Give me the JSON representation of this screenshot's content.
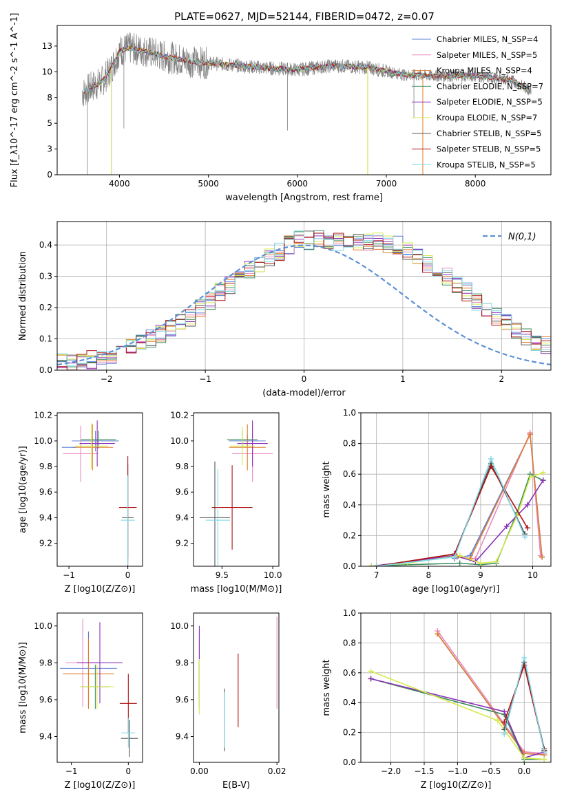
{
  "figure_title": "PLATE=0627, MJD=52144, FIBERID=0472, z=0.07",
  "colors": {
    "Chabrier MILES": "#5b7fd6",
    "Salpeter MILES": "#e88ac0",
    "Kroupa MILES": "#e07d2f",
    "Chabrier ELODIE": "#3d8c5c",
    "Salpeter ELODIE": "#8b2fb8",
    "Kroupa ELODIE": "#d6ea4a",
    "Chabrier STELIB": "#555555",
    "Salpeter STELIB": "#b01010",
    "Kroupa STELIB": "#7fd8e6",
    "data": "#808080",
    "normal": "#5b8fd6"
  },
  "chart_data": [
    {
      "id": "spectrum",
      "type": "line",
      "xlabel": "wavelength [Angstrom, rest frame]",
      "ylabel": "Flux [f_λ10^-17 erg cm^-2 s^-1 A^-1]",
      "xlim": [
        3300,
        8850
      ],
      "ylim": [
        0,
        14.5
      ],
      "xticks": [
        4000,
        5000,
        6000,
        7000,
        8000
      ],
      "yticks": [
        0.0,
        2.5,
        5.0,
        7.5,
        10.0,
        12.5
      ],
      "legend_position": "upper right",
      "legend": [
        "Chabrier MILES, N_SSP=4",
        "Salpeter MILES, N_SSP=5",
        "Kroupa MILES, N_SSP=4",
        "Chabrier ELODIE, N_SSP=7",
        "Salpeter ELODIE, N_SSP=5",
        "Kroupa ELODIE, N_SSP=7",
        "Chabrier STELIB, N_SSP=5",
        "Salpeter STELIB, N_SSP=5",
        "Kroupa STELIB, N_SSP=5"
      ],
      "model_continuum": {
        "x": [
          3600,
          3700,
          3800,
          3900,
          4000,
          4100,
          4300,
          4500,
          4800,
          5200,
          5600,
          6000,
          6400,
          6800,
          7200,
          7600,
          8000,
          8400,
          8600
        ],
        "y": [
          8.0,
          8.6,
          9.0,
          10.2,
          12.0,
          12.3,
          12.0,
          11.5,
          11.0,
          10.7,
          10.4,
          10.2,
          10.6,
          10.4,
          9.7,
          9.6,
          9.6,
          9.2,
          8.3
        ]
      },
      "data_range": [
        3580,
        8630
      ],
      "data_drops": [
        {
          "x": 3640,
          "y": 0.0
        },
        {
          "x": 3910,
          "y": 0.0
        },
        {
          "x": 4050,
          "y": 4.5
        },
        {
          "x": 5890,
          "y": 4.3
        },
        {
          "x": 6790,
          "y": 0.0
        },
        {
          "x": 7310,
          "y": 5.5
        }
      ],
      "model_drops": [
        {
          "x": 3910,
          "y": 0.0
        },
        {
          "x": 6790,
          "y": 0.0
        },
        {
          "x": 7410,
          "y": 0.0
        }
      ]
    },
    {
      "id": "residuals",
      "type": "histogram",
      "xlabel": "(data-model)/error",
      "ylabel": "Normed distribution",
      "xlim": [
        -2.5,
        2.5
      ],
      "ylim": [
        0,
        0.475
      ],
      "xticks": [
        -2,
        -1,
        0,
        1,
        2
      ],
      "yticks": [
        0.0,
        0.1,
        0.2,
        0.3,
        0.4
      ],
      "grid": true,
      "legend_position": "upper right",
      "normal_label": "N(0,1)",
      "bin_width": 0.1,
      "bin_start": -2.5,
      "base_values": [
        0.03,
        0.025,
        0.028,
        0.033,
        0.04,
        0.05,
        0.06,
        0.075,
        0.09,
        0.1,
        0.115,
        0.13,
        0.15,
        0.17,
        0.195,
        0.22,
        0.25,
        0.27,
        0.3,
        0.32,
        0.34,
        0.36,
        0.38,
        0.4,
        0.42,
        0.415,
        0.42,
        0.4,
        0.41,
        0.4,
        0.41,
        0.41,
        0.41,
        0.4,
        0.4,
        0.38,
        0.36,
        0.34,
        0.32,
        0.3,
        0.27,
        0.25,
        0.22,
        0.2,
        0.17,
        0.15,
        0.13,
        0.11,
        0.09,
        0.08,
        0.06,
        0.05,
        0.04,
        0.032,
        0.025
      ],
      "series_count": 9
    },
    {
      "id": "age_vs_Z",
      "type": "errorbar",
      "xlabel": "Z [log10(Z/Z⊙)]",
      "ylabel": "age  [log10(age/yr)]",
      "xlim": [
        -1.2,
        0.25
      ],
      "ylim": [
        9.02,
        10.22
      ],
      "xticks": [
        -1,
        0
      ],
      "yticks": [
        9.2,
        9.4,
        9.6,
        9.8,
        10.0,
        10.2
      ],
      "points": [
        {
          "name": "Chabrier MILES",
          "x": -0.55,
          "xerr": 0.4,
          "y": 10.0,
          "yerr": 0.08
        },
        {
          "name": "Salpeter MILES",
          "x": -0.8,
          "xerr": 0.3,
          "y": 9.9,
          "yerr": 0.22
        },
        {
          "name": "Kroupa MILES",
          "x": -0.6,
          "xerr": 0.35,
          "y": 9.95,
          "yerr": 0.18
        },
        {
          "name": "Chabrier ELODIE",
          "x": -0.5,
          "xerr": 0.3,
          "y": 10.01,
          "yerr": 0.07
        },
        {
          "name": "Salpeter ELODIE",
          "x": -0.52,
          "xerr": 0.3,
          "y": 9.98,
          "yerr": 0.18
        },
        {
          "name": "Kroupa ELODIE",
          "x": -0.62,
          "xerr": 0.28,
          "y": 9.96,
          "yerr": 0.18
        },
        {
          "name": "Chabrier STELIB",
          "x": 0.0,
          "xerr": 0.1,
          "y": 9.4,
          "yerr": 0.42
        },
        {
          "name": "Salpeter STELIB",
          "x": 0.0,
          "xerr": 0.15,
          "y": 9.48,
          "yerr": 0.4
        },
        {
          "name": "Kroupa STELIB",
          "x": 0.0,
          "xerr": 0.12,
          "y": 9.38,
          "yerr": 0.35
        },
        {
          "name": "Chabrier MILES",
          "x": -1.0,
          "xerr": 0.12,
          "y": 9.95,
          "yerr": 0.0
        }
      ]
    },
    {
      "id": "age_vs_mass",
      "type": "errorbar",
      "xlabel": "mass [log10(M/M⊙)]",
      "ylabel": "",
      "xlim": [
        9.22,
        10.06
      ],
      "ylim": [
        9.02,
        10.22
      ],
      "xticks": [
        9.5,
        10.0
      ],
      "yticks": [
        9.2,
        9.4,
        9.6,
        9.8,
        10.0,
        10.2
      ],
      "points": [
        {
          "name": "Chabrier MILES",
          "x": 9.75,
          "xerr": 0.18,
          "y": 10.0,
          "yerr": 0.05
        },
        {
          "name": "Salpeter MILES",
          "x": 9.8,
          "xerr": 0.2,
          "y": 9.9,
          "yerr": 0.22
        },
        {
          "name": "Kroupa MILES",
          "x": 9.75,
          "xerr": 0.18,
          "y": 9.95,
          "yerr": 0.18
        },
        {
          "name": "Chabrier ELODIE",
          "x": 9.7,
          "xerr": 0.15,
          "y": 10.01,
          "yerr": 0.07
        },
        {
          "name": "Salpeter ELODIE",
          "x": 9.8,
          "xerr": 0.15,
          "y": 9.98,
          "yerr": 0.18
        },
        {
          "name": "Kroupa ELODIE",
          "x": 9.7,
          "xerr": 0.12,
          "y": 9.96,
          "yerr": 0.15
        },
        {
          "name": "Chabrier STELIB",
          "x": 9.43,
          "xerr": 0.15,
          "y": 9.4,
          "yerr": 0.44
        },
        {
          "name": "Salpeter STELIB",
          "x": 9.6,
          "xerr": 0.2,
          "y": 9.48,
          "yerr": 0.33
        },
        {
          "name": "Kroupa STELIB",
          "x": 9.46,
          "xerr": 0.12,
          "y": 9.38,
          "yerr": 0.4
        }
      ]
    },
    {
      "id": "mass_weight_vs_age",
      "type": "line",
      "xlabel": "age  [log10(age/yr)]",
      "ylabel": "mass weight",
      "xlim": [
        6.7,
        10.35
      ],
      "ylim": [
        0,
        1.0
      ],
      "xticks": [
        7,
        8,
        9,
        10
      ],
      "yticks": [
        0.0,
        0.2,
        0.4,
        0.6,
        0.8,
        1.0
      ],
      "grid": true,
      "series": [
        {
          "name": "Chabrier MILES",
          "x": [
            8.5,
            8.8,
            9.95,
            10.18
          ],
          "y": [
            0.05,
            0.07,
            0.86,
            0.06
          ]
        },
        {
          "name": "Salpeter MILES",
          "x": [
            8.55,
            8.9,
            9.95,
            10.15
          ],
          "y": [
            0.06,
            0.05,
            0.87,
            0.07
          ]
        },
        {
          "name": "Kroupa MILES",
          "x": [
            8.5,
            8.8,
            9.95,
            10.18
          ],
          "y": [
            0.06,
            0.05,
            0.86,
            0.06
          ]
        },
        {
          "name": "Chabrier ELODIE",
          "x": [
            6.9,
            7.6,
            8.6,
            9.0,
            9.3,
            9.7,
            9.95,
            10.2
          ],
          "y": [
            0.0,
            0.01,
            0.02,
            0.01,
            0.02,
            0.35,
            0.6,
            0.56
          ]
        },
        {
          "name": "Salpeter ELODIE",
          "x": [
            6.9,
            8.5,
            8.9,
            9.5,
            9.9,
            10.2
          ],
          "y": [
            0.0,
            0.07,
            0.03,
            0.26,
            0.4,
            0.56
          ]
        },
        {
          "name": "Kroupa ELODIE",
          "x": [
            6.9,
            7.6,
            8.6,
            9.0,
            9.3,
            9.7,
            9.95,
            10.2
          ],
          "y": [
            0.0,
            0.02,
            0.07,
            0.02,
            0.03,
            0.33,
            0.58,
            0.61
          ]
        },
        {
          "name": "Chabrier STELIB",
          "x": [
            7.0,
            8.5,
            9.2,
            9.85
          ],
          "y": [
            0.0,
            0.08,
            0.67,
            0.21
          ]
        },
        {
          "name": "Salpeter STELIB",
          "x": [
            7.0,
            8.5,
            9.2,
            9.9
          ],
          "y": [
            0.0,
            0.08,
            0.65,
            0.25
          ]
        },
        {
          "name": "Kroupa STELIB",
          "x": [
            7.0,
            8.5,
            9.2,
            9.85
          ],
          "y": [
            0.0,
            0.06,
            0.7,
            0.19
          ]
        }
      ]
    },
    {
      "id": "mass_vs_Z",
      "type": "errorbar",
      "xlabel": "Z [log10(Z/Z⊙)]",
      "ylabel": "mass [log10(M/M⊙)]",
      "xlim": [
        -1.25,
        0.25
      ],
      "ylim": [
        9.26,
        10.07
      ],
      "xticks": [
        -1,
        0
      ],
      "yticks": [
        9.4,
        9.6,
        9.8,
        10.0
      ],
      "points": [
        {
          "name": "Chabrier MILES",
          "x": -0.7,
          "xerr": 0.5,
          "y": 9.77,
          "yerr": 0.2
        },
        {
          "name": "Salpeter MILES",
          "x": -0.8,
          "xerr": 0.3,
          "y": 9.8,
          "yerr": 0.24
        },
        {
          "name": "Kroupa MILES",
          "x": -0.7,
          "xerr": 0.45,
          "y": 9.74,
          "yerr": 0.19
        },
        {
          "name": "Chabrier ELODIE",
          "x": -0.58,
          "xerr": 0.25,
          "y": 9.67,
          "yerr": 0.12
        },
        {
          "name": "Salpeter ELODIE",
          "x": -0.5,
          "xerr": 0.4,
          "y": 9.8,
          "yerr": 0.22
        },
        {
          "name": "Kroupa ELODIE",
          "x": -0.55,
          "xerr": 0.3,
          "y": 9.67,
          "yerr": 0.12
        },
        {
          "name": "Chabrier STELIB",
          "x": 0.02,
          "xerr": 0.15,
          "y": 9.39,
          "yerr": 0.1
        },
        {
          "name": "Salpeter STELIB",
          "x": 0.0,
          "xerr": 0.15,
          "y": 9.58,
          "yerr": 0.16
        },
        {
          "name": "Kroupa STELIB",
          "x": 0.0,
          "xerr": 0.12,
          "y": 9.42,
          "yerr": 0.08
        }
      ]
    },
    {
      "id": "mass_vs_EBV",
      "type": "errorbar",
      "xlabel": "E(B-V)",
      "ylabel": "",
      "xlim": [
        -0.0015,
        0.0205
      ],
      "ylim": [
        9.26,
        10.07
      ],
      "xticks": [
        0.0,
        0.02
      ],
      "yticks": [
        9.4,
        9.6,
        9.8,
        10.0
      ],
      "points": [
        {
          "name": "Chabrier MILES",
          "x": 0.0,
          "xerr": 0.0,
          "y": 9.77,
          "yerr": 0.2
        },
        {
          "name": "Salpeter MILES",
          "x": 0.02,
          "xerr": 0.0,
          "y": 9.8,
          "yerr": 0.25
        },
        {
          "name": "Kroupa MILES",
          "x": 0.0,
          "xerr": 0.0,
          "y": 9.74,
          "yerr": 0.19
        },
        {
          "name": "Chabrier ELODIE",
          "x": 0.0,
          "xerr": 0.0,
          "y": 9.67,
          "yerr": 0.12
        },
        {
          "name": "Salpeter ELODIE",
          "x": 0.0,
          "xerr": 0.0,
          "y": 9.8,
          "yerr": 0.2
        },
        {
          "name": "Kroupa ELODIE",
          "x": 0.0,
          "xerr": 0.0,
          "y": 9.67,
          "yerr": 0.15
        },
        {
          "name": "Chabrier STELIB",
          "x": 0.0065,
          "xerr": 0.0,
          "y": 9.49,
          "yerr": 0.17
        },
        {
          "name": "Salpeter STELIB",
          "x": 0.01,
          "xerr": 0.0,
          "y": 9.65,
          "yerr": 0.2
        },
        {
          "name": "Kroupa STELIB",
          "x": 0.0065,
          "xerr": 0.0,
          "y": 9.49,
          "yerr": 0.15
        }
      ]
    },
    {
      "id": "mass_weight_vs_Z",
      "type": "line",
      "xlabel": "Z [log10(Z/Z⊙)]",
      "ylabel": "mass weight",
      "xlim": [
        -2.45,
        0.4
      ],
      "ylim": [
        0,
        1.0
      ],
      "xticks": [
        -2.0,
        -1.5,
        -1.0,
        -0.5,
        0.0
      ],
      "yticks": [
        0.0,
        0.2,
        0.4,
        0.6,
        0.8,
        1.0
      ],
      "grid": true,
      "series": [
        {
          "name": "Chabrier MILES",
          "x": [
            -1.3,
            0.0,
            0.3
          ],
          "y": [
            0.86,
            0.06,
            0.05
          ]
        },
        {
          "name": "Salpeter MILES",
          "x": [
            -1.3,
            0.0,
            0.3
          ],
          "y": [
            0.88,
            0.07,
            0.06
          ]
        },
        {
          "name": "Kroupa MILES",
          "x": [
            -1.3,
            0.0,
            0.3
          ],
          "y": [
            0.86,
            0.06,
            0.05
          ]
        },
        {
          "name": "Chabrier ELODIE",
          "x": [
            -2.3,
            -0.3,
            0.0,
            0.3
          ],
          "y": [
            0.56,
            0.32,
            0.02,
            0.02
          ]
        },
        {
          "name": "Salpeter ELODIE",
          "x": [
            -2.3,
            -0.3,
            0.0,
            0.3
          ],
          "y": [
            0.56,
            0.34,
            0.03,
            0.07
          ]
        },
        {
          "name": "Kroupa ELODIE",
          "x": [
            -2.3,
            -0.4,
            0.0,
            0.3
          ],
          "y": [
            0.61,
            0.28,
            0.03,
            0.02
          ]
        },
        {
          "name": "Chabrier STELIB",
          "x": [
            -0.3,
            0.0,
            0.3
          ],
          "y": [
            0.22,
            0.67,
            0.09
          ]
        },
        {
          "name": "Salpeter STELIB",
          "x": [
            -0.3,
            0.0,
            0.3
          ],
          "y": [
            0.27,
            0.65,
            0.08
          ]
        },
        {
          "name": "Kroupa STELIB",
          "x": [
            -0.3,
            0.0,
            0.3
          ],
          "y": [
            0.19,
            0.7,
            0.07
          ]
        }
      ]
    }
  ]
}
